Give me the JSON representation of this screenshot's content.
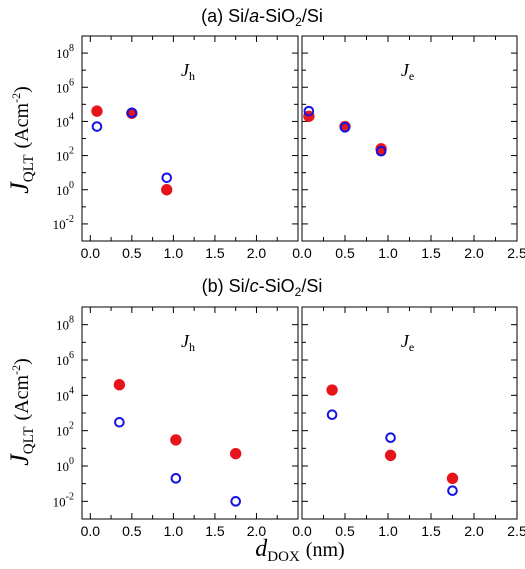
{
  "chart_data": [
    {
      "type": "scatter",
      "panel": "a",
      "title_prefix": "(a) ",
      "title_parts": [
        "Si/",
        "a",
        "-SiO",
        "2",
        "/Si"
      ],
      "ylabel_main": "J",
      "ylabel_sub": "QLT",
      "ylabel_unit": "(Acm",
      "ylabel_exp": "-2",
      "ylabel_close": ")",
      "ylog": true,
      "ylim": [
        0.001,
        1000000000
      ],
      "yticks": [
        {
          "base": "10",
          "exp": "-2"
        },
        {
          "base": "10",
          "exp": "0"
        },
        {
          "base": "10",
          "exp": "2"
        },
        {
          "base": "10",
          "exp": "4"
        },
        {
          "base": "10",
          "exp": "6"
        },
        {
          "base": "10",
          "exp": "8"
        }
      ],
      "subplots": [
        {
          "label_main": "J",
          "label_sub": "h",
          "xlim": [
            -0.1,
            2.5
          ],
          "xticks": [
            "0.0",
            "0.5",
            "1.0",
            "1.5",
            "2.0"
          ],
          "series": [
            {
              "marker": "filled",
              "color": "#e8141c",
              "points": [
                [
                  0.08,
                  40000
                ],
                [
                  0.5,
                  30000
                ],
                [
                  0.92,
                  1
                ]
              ]
            },
            {
              "marker": "open",
              "color": "#1414e6",
              "points": [
                [
                  0.08,
                  5000
                ],
                [
                  0.5,
                  32000
                ],
                [
                  0.92,
                  5
                ]
              ]
            }
          ]
        },
        {
          "label_main": "J",
          "label_sub": "e",
          "xlim": [
            0.0,
            2.5
          ],
          "xticks": [
            "0.0",
            "0.5",
            "1.0",
            "1.5",
            "2.0",
            "2.5"
          ],
          "series": [
            {
              "marker": "filled",
              "color": "#e8141c",
              "points": [
                [
                  0.08,
                  20000
                ],
                [
                  0.5,
                  5000
                ],
                [
                  0.92,
                  250
                ]
              ]
            },
            {
              "marker": "open",
              "color": "#1414e6",
              "points": [
                [
                  0.08,
                  40000
                ],
                [
                  0.5,
                  4500
                ],
                [
                  0.92,
                  180
                ]
              ]
            }
          ]
        }
      ]
    },
    {
      "type": "scatter",
      "panel": "b",
      "title_prefix": "(b) ",
      "title_parts": [
        "Si/",
        "c",
        "-SiO",
        "2",
        "/Si"
      ],
      "ylabel_main": "J",
      "ylabel_sub": "QLT",
      "ylabel_unit": "(Acm",
      "ylabel_exp": "-2",
      "ylabel_close": ")",
      "ylog": true,
      "ylim": [
        0.001,
        1000000000
      ],
      "yticks": [
        {
          "base": "10",
          "exp": "-2"
        },
        {
          "base": "10",
          "exp": "0"
        },
        {
          "base": "10",
          "exp": "2"
        },
        {
          "base": "10",
          "exp": "4"
        },
        {
          "base": "10",
          "exp": "6"
        },
        {
          "base": "10",
          "exp": "8"
        }
      ],
      "xlabel_main": "d",
      "xlabel_sub": "DOX",
      "xlabel_unit": "(nm)",
      "subplots": [
        {
          "label_main": "J",
          "label_sub": "h",
          "xlim": [
            -0.1,
            2.5
          ],
          "xticks": [
            "0.0",
            "0.5",
            "1.0",
            "1.5",
            "2.0"
          ],
          "series": [
            {
              "marker": "filled",
              "color": "#e8141c",
              "points": [
                [
                  0.35,
                  40000
                ],
                [
                  1.03,
                  30
                ],
                [
                  1.75,
                  5
                ]
              ]
            },
            {
              "marker": "open",
              "color": "#1414e6",
              "points": [
                [
                  0.35,
                  300
                ],
                [
                  1.03,
                  0.2
                ],
                [
                  1.75,
                  0.01
                ]
              ]
            }
          ]
        },
        {
          "label_main": "J",
          "label_sub": "e",
          "xlim": [
            0.0,
            2.5
          ],
          "xticks": [
            "0.0",
            "0.5",
            "1.0",
            "1.5",
            "2.0",
            "2.5"
          ],
          "series": [
            {
              "marker": "filled",
              "color": "#e8141c",
              "points": [
                [
                  0.35,
                  20000
                ],
                [
                  1.03,
                  4
                ],
                [
                  1.75,
                  0.2
                ]
              ]
            },
            {
              "marker": "open",
              "color": "#1414e6",
              "points": [
                [
                  0.35,
                  800
                ],
                [
                  1.03,
                  40
                ],
                [
                  1.75,
                  0.04
                ]
              ]
            }
          ]
        }
      ]
    }
  ]
}
